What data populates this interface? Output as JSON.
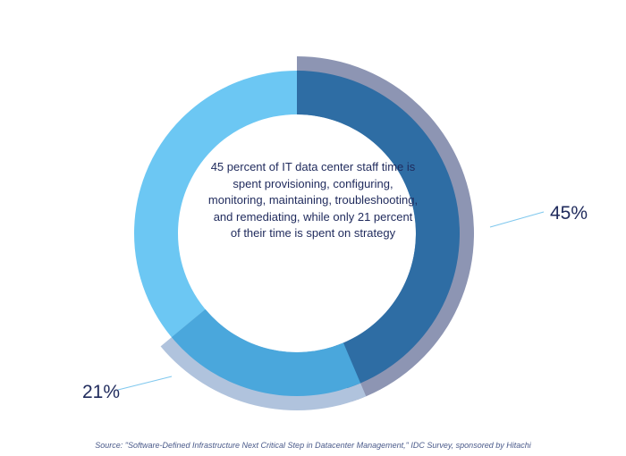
{
  "chart_data": {
    "type": "pie",
    "center_text": "45 percent of IT data center staff time is spent provisioning, configuring, monitoring, maintaining, troubleshooting, and remediating, while only 21 percent of their time is spent on strategy",
    "segments": [
      {
        "label": "45%",
        "value": 45,
        "color": "#2e6da4",
        "outer_color": "#8d95b3"
      },
      {
        "label": "21%",
        "value": 21,
        "color": "#4aa7dc",
        "outer_color": "#b0c3dd"
      }
    ],
    "base_color": "#6cc7f3",
    "source": "Source: \"Software-Defined Infrastructure Next Critical Step in Datacenter Management,\" IDC Survey, sponsored by Hitachi"
  }
}
